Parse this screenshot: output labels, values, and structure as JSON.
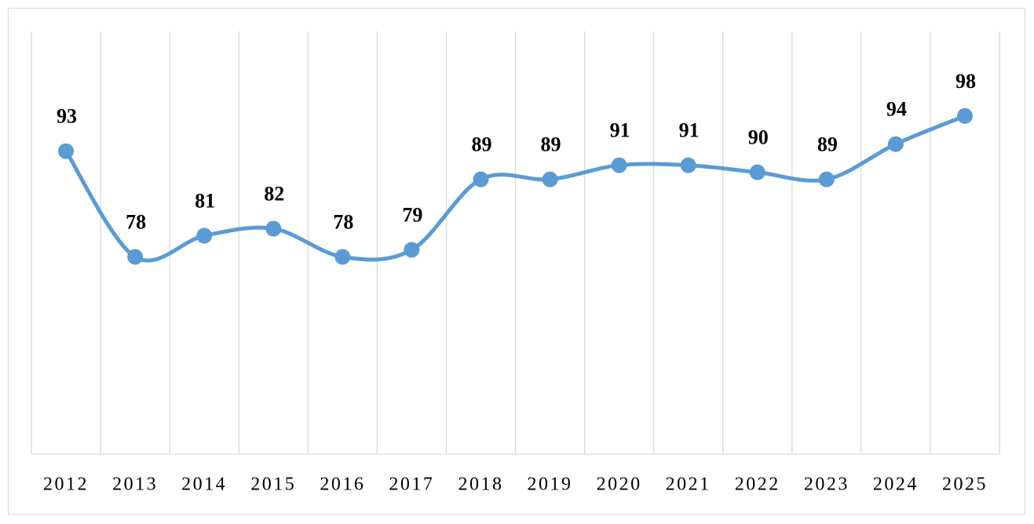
{
  "chart_data": {
    "type": "line",
    "categories": [
      "2012",
      "2013",
      "2014",
      "2015",
      "2016",
      "2017",
      "2018",
      "2019",
      "2020",
      "2021",
      "2022",
      "2023",
      "2024",
      "2025"
    ],
    "values": [
      93,
      78,
      81,
      82,
      78,
      79,
      89,
      89,
      91,
      91,
      90,
      89,
      94,
      98
    ],
    "color": "#5b9bd5",
    "ylim": [
      50,
      110
    ],
    "grid": true,
    "smooth": true
  }
}
